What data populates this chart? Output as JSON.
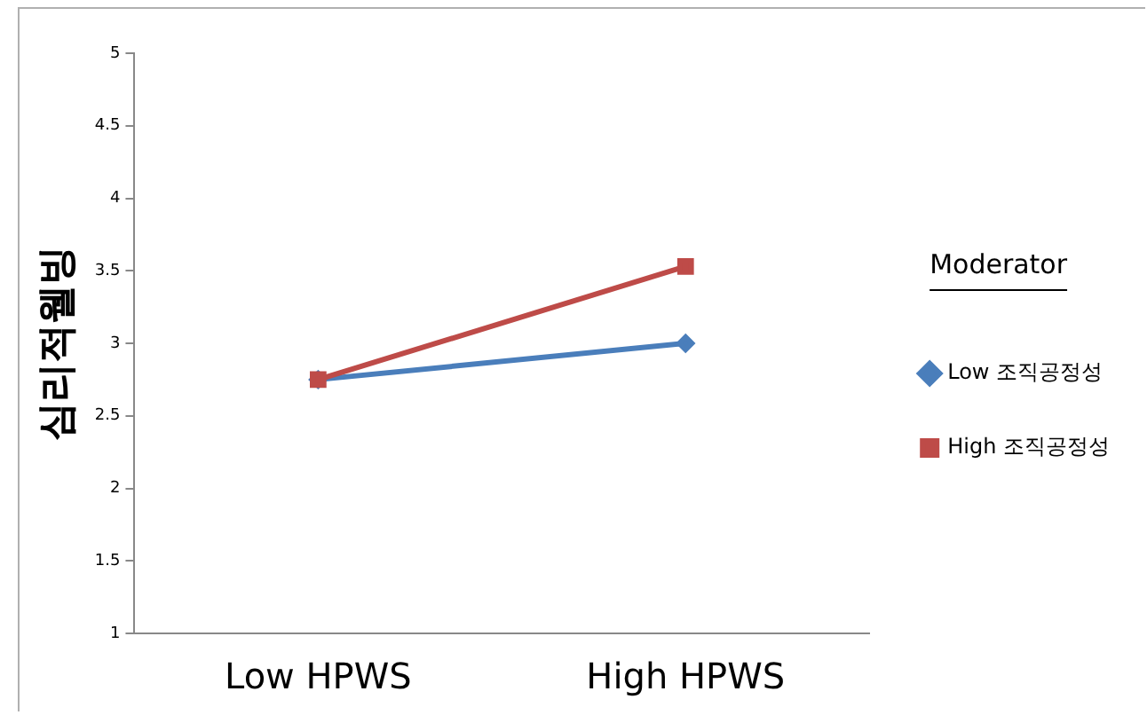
{
  "chart_data": {
    "type": "line",
    "ylabel": "심리적웰빙",
    "legend_title": "Moderator",
    "categories": [
      "Low HPWS",
      "High HPWS"
    ],
    "series": [
      {
        "name": "Low 조직공정성",
        "color": "#4a7ebb",
        "values": [
          2.75,
          3.0
        ],
        "marker": "diamond"
      },
      {
        "name": "High 조직공정성",
        "color": "#be4b48",
        "values": [
          2.75,
          3.53
        ],
        "marker": "square"
      }
    ],
    "ylim": [
      1,
      5
    ],
    "yticks": [
      1,
      1.5,
      2,
      2.5,
      3,
      3.5,
      4,
      4.5,
      5
    ],
    "grid": false,
    "legend": "right",
    "line_style": "solid"
  }
}
